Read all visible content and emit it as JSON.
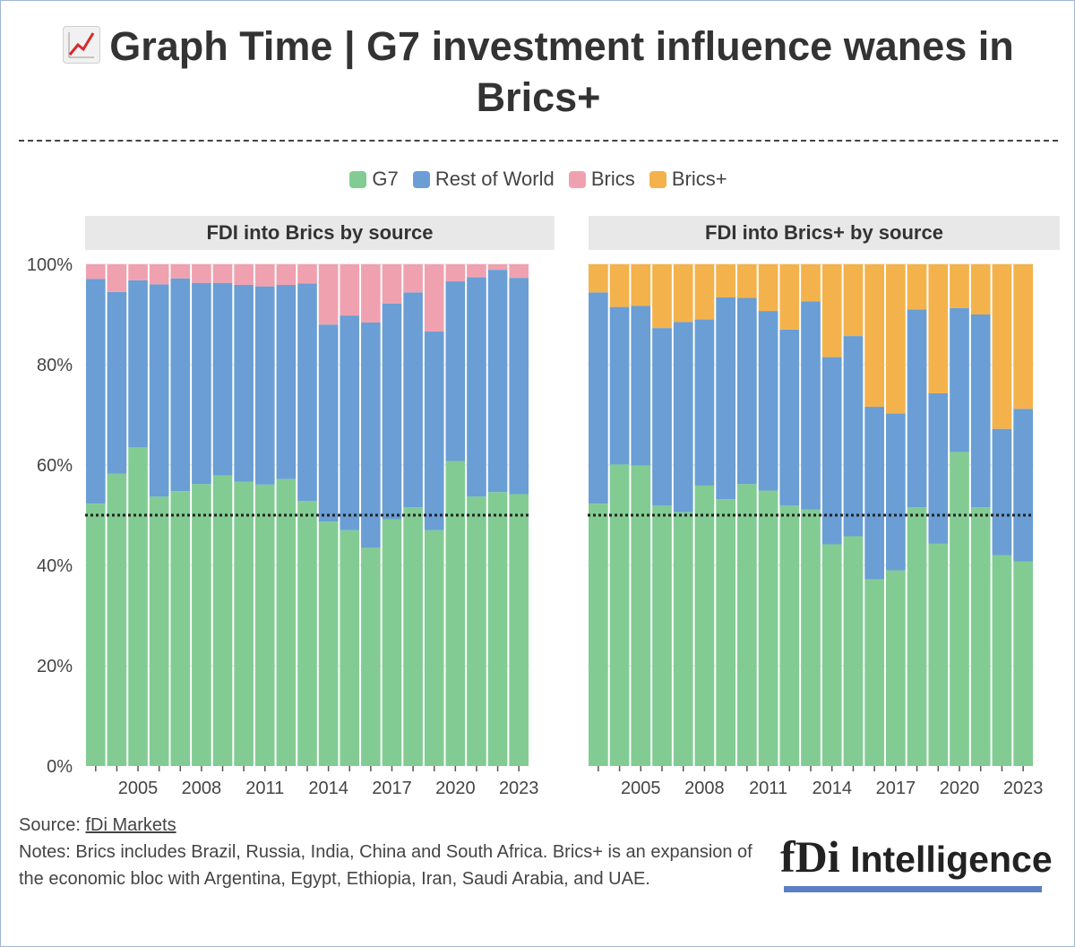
{
  "title": "Graph Time | G7 investment influence wanes in Brics+",
  "title_icon": "chart-increasing-icon",
  "legend": [
    {
      "label": "G7",
      "color": "#82cc93"
    },
    {
      "label": "Rest of World",
      "color": "#6a9ed5"
    },
    {
      "label": "Brics",
      "color": "#f0a1b0"
    },
    {
      "label": "Brics+",
      "color": "#f4b24c"
    }
  ],
  "chart_data": [
    {
      "type": "bar",
      "stacked": true,
      "title": "FDI into Brics by source",
      "x": [
        2003,
        2004,
        2005,
        2006,
        2007,
        2008,
        2009,
        2010,
        2011,
        2012,
        2013,
        2014,
        2015,
        2016,
        2017,
        2018,
        2019,
        2020,
        2021,
        2022,
        2023
      ],
      "x_tick_labels": [
        "2005",
        "2008",
        "2011",
        "2014",
        "2017",
        "2020",
        "2023"
      ],
      "ylim": [
        0,
        100
      ],
      "y_tick_labels": [
        "0%",
        "20%",
        "40%",
        "60%",
        "80%",
        "100%"
      ],
      "reference_line": 50,
      "series": [
        {
          "name": "G7",
          "values": [
            52.3,
            58.3,
            63.5,
            53.7,
            54.8,
            56.2,
            57.9,
            56.7,
            56.1,
            57.2,
            52.8,
            48.7,
            47.0,
            43.5,
            49.2,
            51.6,
            47.0,
            60.8,
            53.7,
            54.6,
            54.2
          ]
        },
        {
          "name": "Rest of World",
          "values": [
            44.8,
            36.2,
            33.3,
            42.3,
            42.4,
            40.1,
            38.4,
            39.2,
            39.5,
            38.7,
            43.4,
            39.3,
            42.8,
            44.9,
            43.0,
            42.8,
            39.6,
            35.8,
            43.7,
            44.3,
            43.1
          ]
        },
        {
          "name": "Brics",
          "values": [
            2.9,
            5.5,
            3.2,
            4.0,
            2.8,
            3.7,
            3.7,
            4.1,
            4.4,
            4.1,
            3.8,
            12.0,
            10.2,
            11.6,
            7.8,
            5.6,
            13.4,
            3.4,
            2.6,
            1.1,
            2.7
          ]
        }
      ]
    },
    {
      "type": "bar",
      "stacked": true,
      "title": "FDI into Brics+ by source",
      "x": [
        2003,
        2004,
        2005,
        2006,
        2007,
        2008,
        2009,
        2010,
        2011,
        2012,
        2013,
        2014,
        2015,
        2016,
        2017,
        2018,
        2019,
        2020,
        2021,
        2022,
        2023
      ],
      "x_tick_labels": [
        "2005",
        "2008",
        "2011",
        "2014",
        "2017",
        "2020",
        "2023"
      ],
      "ylim": [
        0,
        100
      ],
      "y_tick_labels": [
        "0%",
        "20%",
        "40%",
        "60%",
        "80%",
        "100%"
      ],
      "reference_line": 50,
      "series": [
        {
          "name": "G7",
          "values": [
            52.3,
            60.1,
            59.9,
            51.9,
            50.6,
            55.9,
            53.2,
            56.2,
            54.9,
            51.9,
            51.1,
            44.2,
            45.8,
            37.2,
            39.0,
            51.6,
            44.3,
            62.6,
            51.6,
            42.0,
            40.8
          ]
        },
        {
          "name": "Rest of World",
          "values": [
            42.1,
            31.4,
            31.8,
            35.4,
            37.9,
            33.1,
            40.2,
            37.1,
            35.8,
            35.1,
            41.5,
            37.3,
            39.9,
            34.4,
            31.3,
            39.4,
            30.0,
            28.7,
            38.4,
            25.2,
            30.4
          ]
        },
        {
          "name": "Brics+",
          "values": [
            5.6,
            8.5,
            8.3,
            12.7,
            11.5,
            11.0,
            6.6,
            6.7,
            9.3,
            13.0,
            7.4,
            18.5,
            14.3,
            28.4,
            29.7,
            9.0,
            25.7,
            8.7,
            10.0,
            32.8,
            28.8
          ]
        }
      ]
    }
  ],
  "footer": {
    "source_prefix": "Source: ",
    "source_link": "fDi Markets",
    "notes": "Notes: Brics includes Brazil, Russia, India, China and South Africa. Brics+ is an expansion of the economic bloc with Argentina, Egypt, Ethiopia, Iran, Saudi Arabia, and UAE."
  },
  "logo": {
    "mark": "fDi",
    "word": "Intelligence",
    "accent_color": "#5b7fc4"
  }
}
